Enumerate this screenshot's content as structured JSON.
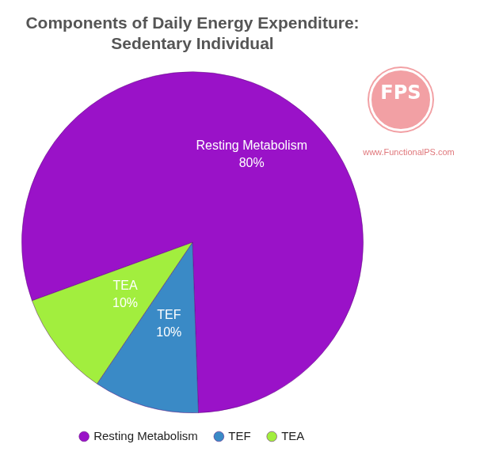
{
  "chart_data": {
    "type": "pie",
    "title": [
      "Components of Daily Energy Expenditure:",
      "Sedentary Individual"
    ],
    "categories": [
      "Resting Metabolism",
      "TEF",
      "TEA"
    ],
    "values": [
      80,
      10,
      10
    ],
    "value_labels": [
      "80%",
      "10%",
      "10%"
    ],
    "colors": [
      "#9a12c8",
      "#3a8ac6",
      "#a2ee3e"
    ],
    "data_labels": true,
    "legend": "bottom",
    "annotations": [
      "FPS",
      "www.FunctionalPS.com"
    ]
  }
}
